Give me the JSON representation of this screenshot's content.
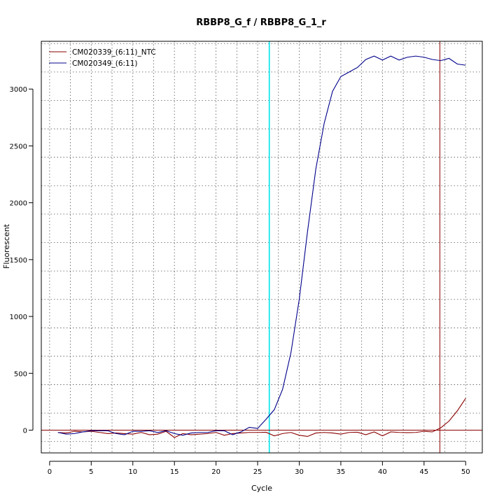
{
  "chart_data": {
    "type": "line",
    "title": "RBBP8_G_f / RBBP8_G_1_r",
    "xlabel": "Cycle",
    "ylabel": "Fluorescent",
    "xlim": [
      -1,
      52
    ],
    "ylim": [
      -200,
      3420
    ],
    "x_ticks": [
      0,
      5,
      10,
      15,
      20,
      25,
      30,
      35,
      40,
      45,
      50
    ],
    "y_ticks": [
      0,
      500,
      1000,
      1500,
      2000,
      2500,
      3000
    ],
    "grid": true,
    "legend_position": "top-left",
    "threshold": 0,
    "threshold_color": "#8b0000",
    "colors": {
      "ntc": "#8b0000",
      "sample": "#00008b",
      "ct_line": "#00e5ee"
    },
    "x": [
      1,
      2,
      3,
      4,
      5,
      6,
      7,
      8,
      9,
      10,
      11,
      12,
      13,
      14,
      15,
      16,
      17,
      18,
      19,
      20,
      21,
      22,
      23,
      24,
      25,
      26,
      27,
      28,
      29,
      30,
      31,
      32,
      33,
      34,
      35,
      36,
      37,
      38,
      39,
      40,
      41,
      42,
      43,
      44,
      45,
      46,
      47,
      48,
      49,
      50
    ],
    "series": [
      {
        "name": "CM020339_(6:11)_NTC",
        "color": "#8b0000",
        "values": [
          -20,
          -25,
          -10,
          -15,
          -10,
          -20,
          -30,
          -25,
          -30,
          -35,
          -20,
          -40,
          -35,
          -10,
          -65,
          -30,
          -40,
          -35,
          -30,
          -20,
          -45,
          -30,
          -25,
          -20,
          -20,
          -18,
          -50,
          -30,
          -20,
          -45,
          -55,
          -25,
          -20,
          -25,
          -35,
          -20,
          -18,
          -40,
          -15,
          -50,
          -15,
          -20,
          -22,
          -20,
          -10,
          -15,
          20,
          80,
          170,
          280
        ]
      },
      {
        "name": "CM020349_(6:11)",
        "color": "#00008b",
        "values": [
          -20,
          -35,
          -30,
          -15,
          -5,
          -5,
          -5,
          -30,
          -40,
          -10,
          -10,
          -5,
          -20,
          -5,
          -30,
          -45,
          -25,
          -20,
          -20,
          -5,
          -5,
          -40,
          -15,
          25,
          15,
          95,
          180,
          360,
          680,
          1150,
          1750,
          2300,
          2700,
          2980,
          3110,
          3150,
          3190,
          3260,
          3290,
          3255,
          3290,
          3255,
          3280,
          3290,
          3280,
          3260,
          3250,
          3270,
          3220,
          3210
        ]
      }
    ],
    "vertical_lines": [
      {
        "x": 26.4,
        "color": "#00e5ee"
      },
      {
        "x": 46.9,
        "color": "#8b0000"
      }
    ]
  }
}
